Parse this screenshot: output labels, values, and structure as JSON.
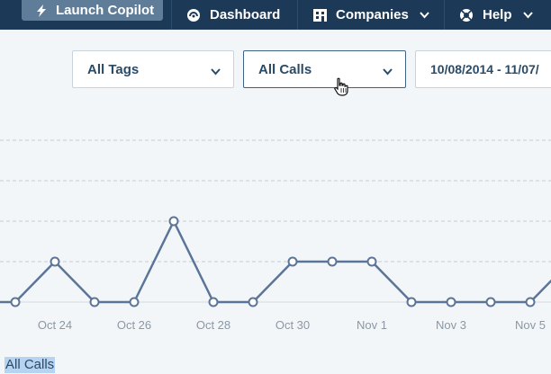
{
  "nav": {
    "launch_label": "Launch Copilot",
    "dashboard_label": "Dashboard",
    "companies_label": "Companies",
    "help_label": "Help"
  },
  "filters": {
    "tags": "All Tags",
    "calls": "All Calls",
    "date_range": "10/08/2014 - 11/07/"
  },
  "selection_text": "All Calls",
  "colors": {
    "nav_bg": "#1c3a57",
    "line": "#5b7599",
    "page_bg": "#f3f6f9"
  },
  "chart_data": {
    "type": "line",
    "title": "",
    "xlabel": "",
    "ylabel": "",
    "ylim": [
      0,
      5
    ],
    "grid": true,
    "tick_labels": [
      "Oct 24",
      "Oct 26",
      "Oct 28",
      "Oct 30",
      "Nov 1",
      "Nov 3",
      "Nov 5"
    ],
    "x": [
      "Oct 23",
      "Oct 24",
      "Oct 25",
      "Oct 26",
      "Oct 27",
      "Oct 28",
      "Oct 29",
      "Oct 30",
      "Oct 31",
      "Nov 1",
      "Nov 2",
      "Nov 3",
      "Nov 4",
      "Nov 5",
      "Nov 6"
    ],
    "series": [
      {
        "values": [
          0,
          1,
          0,
          0,
          2,
          0,
          0,
          1,
          1,
          1,
          0,
          0,
          0,
          0,
          1
        ]
      }
    ]
  }
}
